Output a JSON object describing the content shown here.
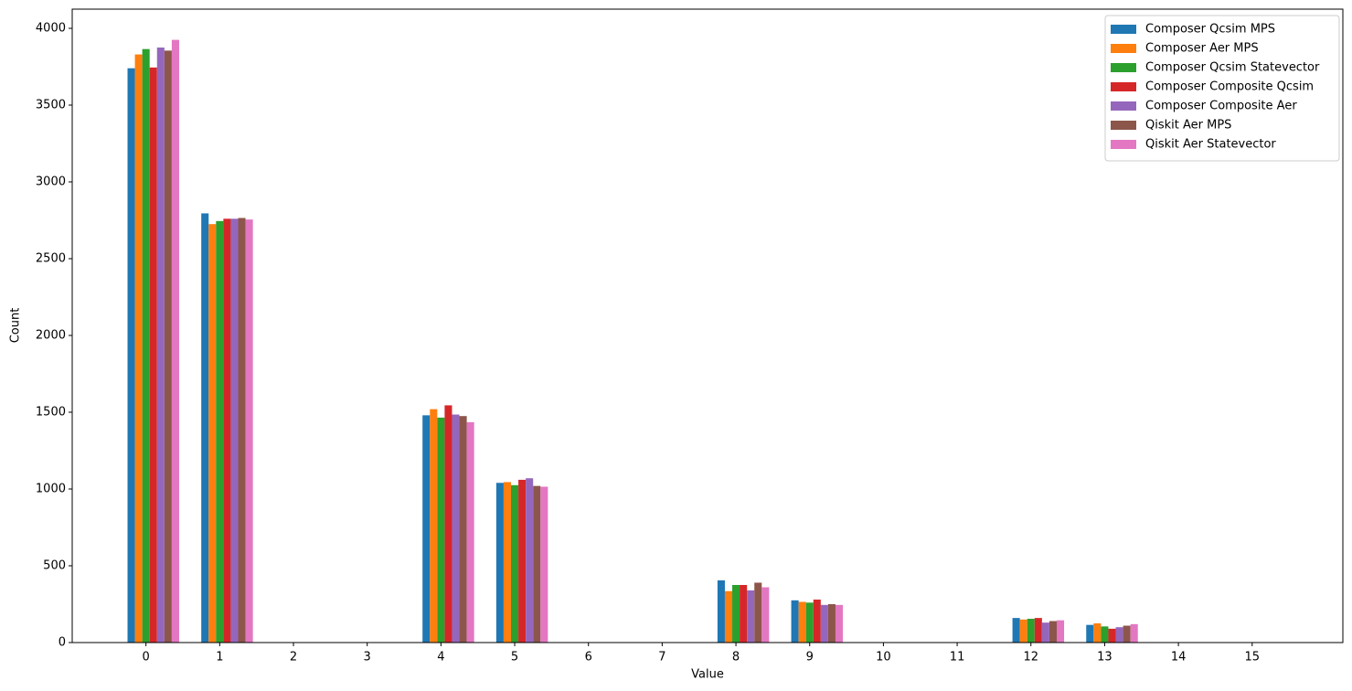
{
  "chart_data": {
    "type": "bar",
    "xlabel": "Value",
    "ylabel": "Count",
    "categories": [
      "0",
      "1",
      "2",
      "3",
      "4",
      "5",
      "6",
      "7",
      "8",
      "9",
      "10",
      "11",
      "12",
      "13",
      "14",
      "15"
    ],
    "ylim": [
      0,
      4125
    ],
    "yticks": [
      0,
      500,
      1000,
      1500,
      2000,
      2500,
      3000,
      3500,
      4000
    ],
    "legend": "upper right",
    "series": [
      {
        "name": "Composer Qcsim MPS",
        "color": "#1f77b4",
        "values": [
          3740,
          2795,
          0,
          0,
          1480,
          1040,
          0,
          0,
          405,
          275,
          0,
          0,
          160,
          115,
          0,
          0
        ]
      },
      {
        "name": "Composer Aer MPS",
        "color": "#ff7f0e",
        "values": [
          3830,
          2725,
          0,
          0,
          1520,
          1045,
          0,
          0,
          335,
          265,
          0,
          0,
          150,
          125,
          0,
          0
        ]
      },
      {
        "name": "Composer Qcsim Statevector",
        "color": "#2ca02c",
        "values": [
          3865,
          2745,
          0,
          0,
          1465,
          1025,
          0,
          0,
          375,
          260,
          0,
          0,
          155,
          105,
          0,
          0
        ]
      },
      {
        "name": "Composer Composite Qcsim",
        "color": "#d62728",
        "values": [
          3745,
          2760,
          0,
          0,
          1545,
          1060,
          0,
          0,
          375,
          280,
          0,
          0,
          160,
          90,
          0,
          0
        ]
      },
      {
        "name": "Composer Composite Aer",
        "color": "#9467bd",
        "values": [
          3875,
          2760,
          0,
          0,
          1485,
          1070,
          0,
          0,
          340,
          245,
          0,
          0,
          130,
          100,
          0,
          0
        ]
      },
      {
        "name": "Qiskit Aer MPS",
        "color": "#8c564b",
        "values": [
          3855,
          2765,
          0,
          0,
          1475,
          1020,
          0,
          0,
          390,
          250,
          0,
          0,
          140,
          110,
          0,
          0
        ]
      },
      {
        "name": "Qiskit Aer Statevector",
        "color": "#e377c2",
        "values": [
          3925,
          2755,
          0,
          0,
          1435,
          1015,
          0,
          0,
          360,
          245,
          0,
          0,
          145,
          120,
          0,
          0
        ]
      }
    ]
  }
}
